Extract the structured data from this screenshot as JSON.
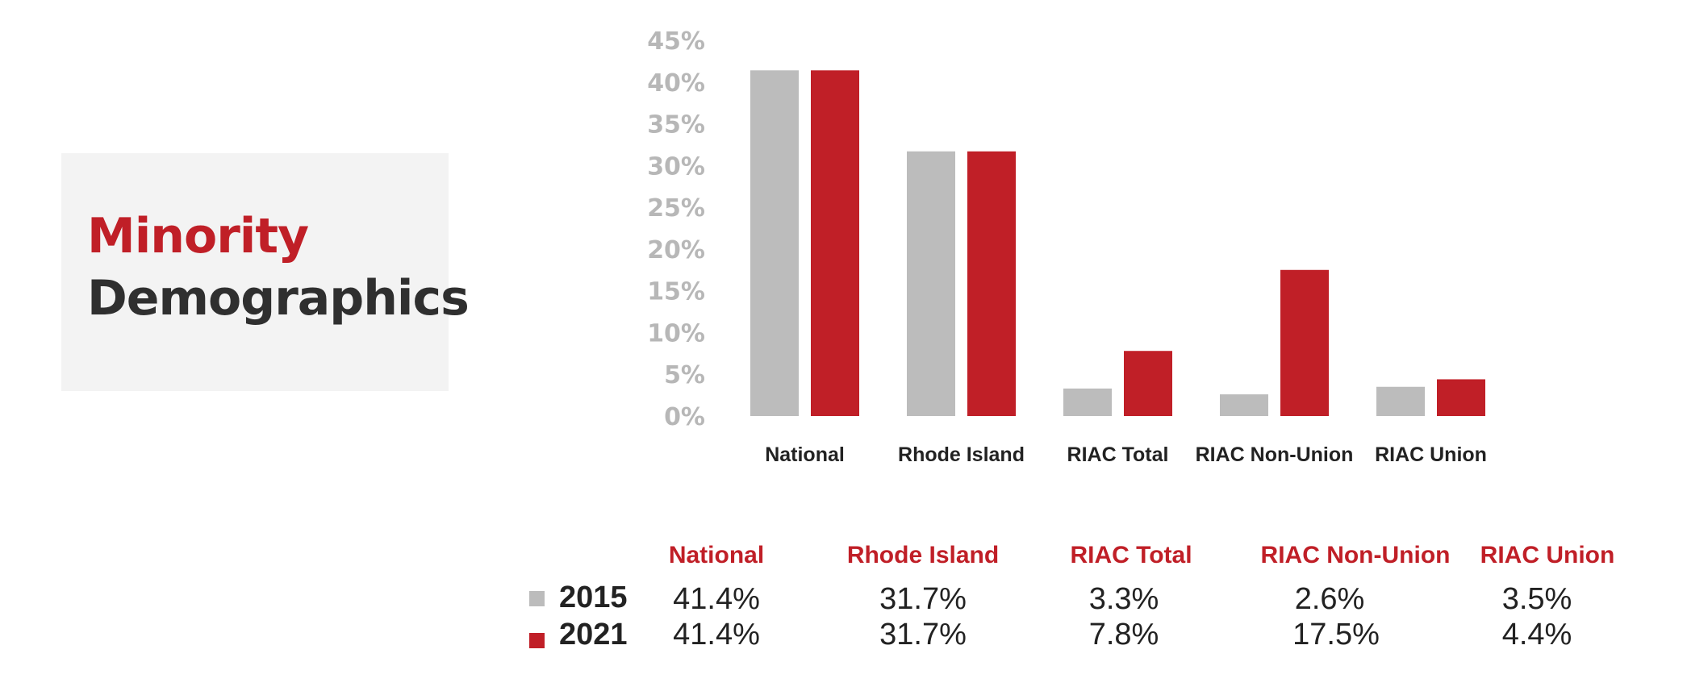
{
  "title": {
    "line1": "Minority",
    "line2": "Demographics"
  },
  "colors": {
    "series_2015": "#bcbcbc",
    "series_2021": "#c01f27",
    "axis_text": "#b7b7b7",
    "title_red": "#c01f27"
  },
  "chart_data": {
    "type": "bar",
    "categories": [
      "National",
      "Rhode Island",
      "RIAC Total",
      "RIAC Non-Union",
      "RIAC Union"
    ],
    "series": [
      {
        "name": "2015",
        "values": [
          41.4,
          31.7,
          3.3,
          2.6,
          3.5
        ]
      },
      {
        "name": "2021",
        "values": [
          41.4,
          31.7,
          7.8,
          17.5,
          4.4
        ]
      }
    ],
    "yticks": [
      "0%",
      "5%",
      "10%",
      "15%",
      "20%",
      "25%",
      "30%",
      "35%",
      "40%",
      "45%"
    ],
    "ylim": [
      0,
      45
    ],
    "grid": false
  },
  "table": {
    "headers": [
      "National",
      "Rhode Island",
      "RIAC Total",
      "RIAC Non-Union",
      "RIAC Union"
    ],
    "rows": [
      {
        "label": "2015",
        "values": [
          "41.4%",
          "31.7%",
          "3.3%",
          "2.6%",
          "3.5%"
        ]
      },
      {
        "label": "2021",
        "values": [
          "41.4%",
          "31.7%",
          "7.8%",
          "17.5%",
          "4.4%"
        ]
      }
    ]
  }
}
